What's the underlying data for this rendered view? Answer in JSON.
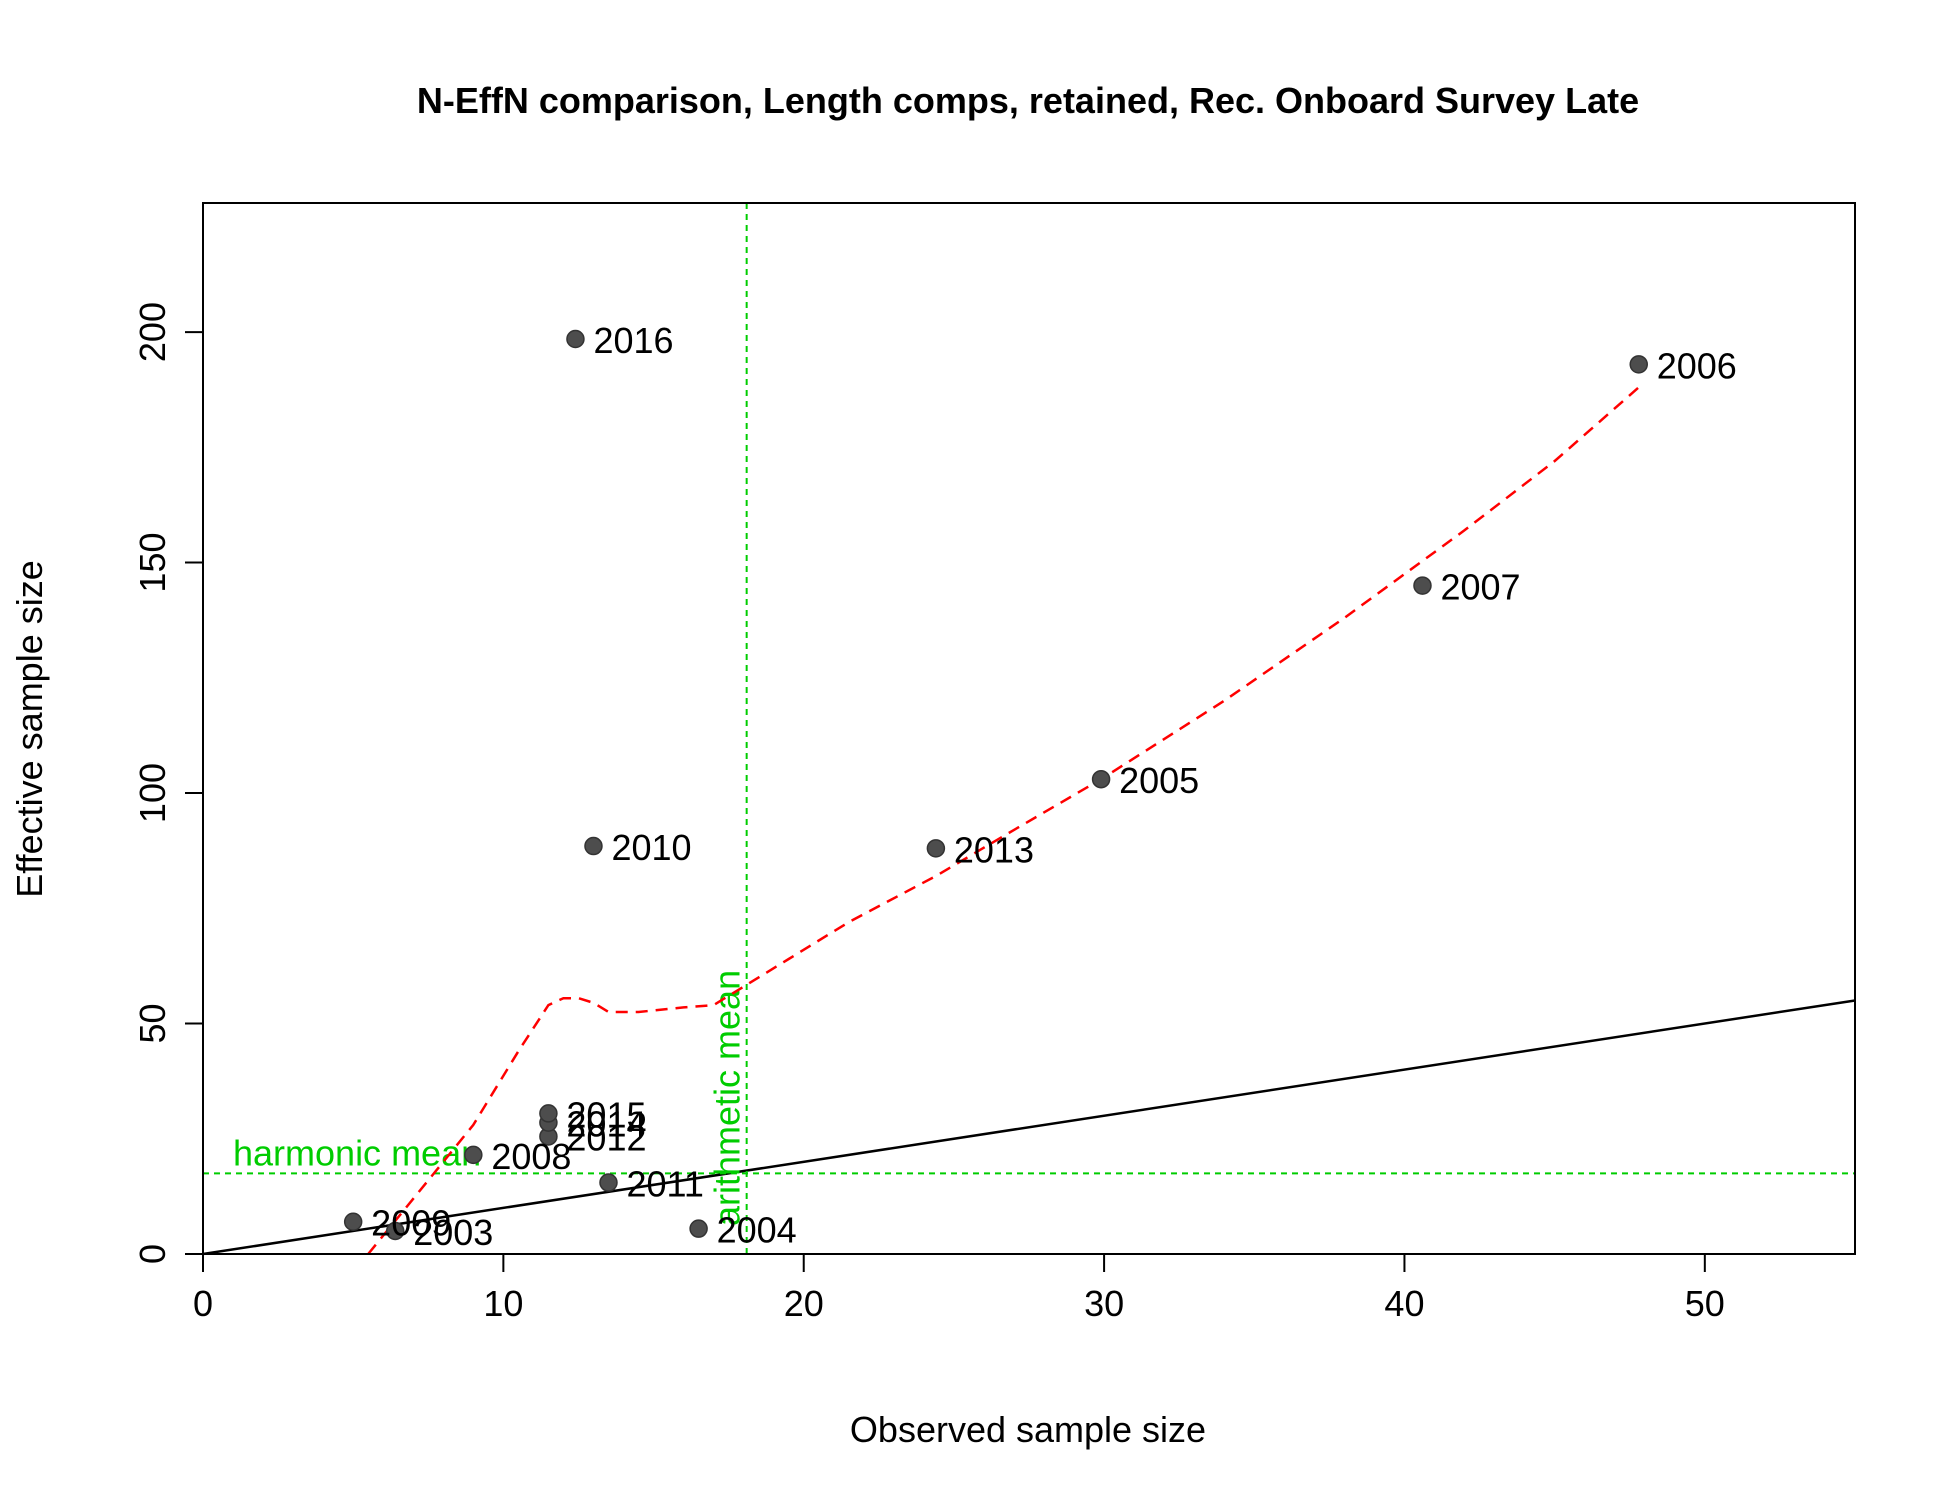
{
  "chart_data": {
    "type": "scatter",
    "title": "N-EffN comparison, Length comps, retained, Rec. Onboard Survey Late",
    "xlabel": "Observed sample size",
    "ylabel": "Effective sample size",
    "xlim": [
      0,
      55
    ],
    "ylim": [
      0,
      228
    ],
    "xticks": [
      0,
      10,
      20,
      30,
      40,
      50
    ],
    "yticks": [
      0,
      50,
      100,
      150,
      200
    ],
    "grid": false,
    "colors": {
      "points": "#4d4d4d",
      "identity_line": "#000000",
      "smoother": "#ff0000",
      "means": "#00cc00"
    },
    "points": [
      {
        "label": "2003",
        "x": 6.4,
        "y": 5
      },
      {
        "label": "2004",
        "x": 16.5,
        "y": 5.5
      },
      {
        "label": "2005",
        "x": 29.9,
        "y": 103
      },
      {
        "label": "2006",
        "x": 47.8,
        "y": 193
      },
      {
        "label": "2007",
        "x": 40.6,
        "y": 145
      },
      {
        "label": "2008",
        "x": 9.0,
        "y": 21.5
      },
      {
        "label": "2009",
        "x": 5.0,
        "y": 7
      },
      {
        "label": "2010",
        "x": 13.0,
        "y": 88.5
      },
      {
        "label": "2011",
        "x": 13.5,
        "y": 15.5
      },
      {
        "label": "2012",
        "x": 11.5,
        "y": 25.5
      },
      {
        "label": "2013",
        "x": 24.4,
        "y": 88
      },
      {
        "label": "2014",
        "x": 11.5,
        "y": 28.5
      },
      {
        "label": "2015",
        "x": 11.5,
        "y": 30.5
      },
      {
        "label": "2016",
        "x": 12.4,
        "y": 198.5
      }
    ],
    "identity_line": {
      "x": [
        0,
        55
      ],
      "y": [
        0,
        55
      ]
    },
    "smoother": {
      "x": [
        5.5,
        7.0,
        9.0,
        10.5,
        11.5,
        12.0,
        12.5,
        13.0,
        13.5,
        14.5,
        16.0,
        17.0,
        18.0,
        19.5,
        21.5,
        24.4,
        27.0,
        29.9,
        34.0,
        38.0,
        42.0,
        45.0,
        47.8
      ],
      "y": [
        0,
        12,
        28,
        44,
        54,
        55.5,
        55.5,
        54.5,
        52.5,
        52.5,
        53.5,
        54,
        58,
        64,
        72,
        82,
        92,
        103,
        120,
        138,
        157,
        172,
        188
      ]
    },
    "arithmetic_mean": {
      "label": "arithmetic mean",
      "x": 18.1
    },
    "harmonic_mean": {
      "label": "harmonic mean",
      "y": 17.5
    }
  }
}
